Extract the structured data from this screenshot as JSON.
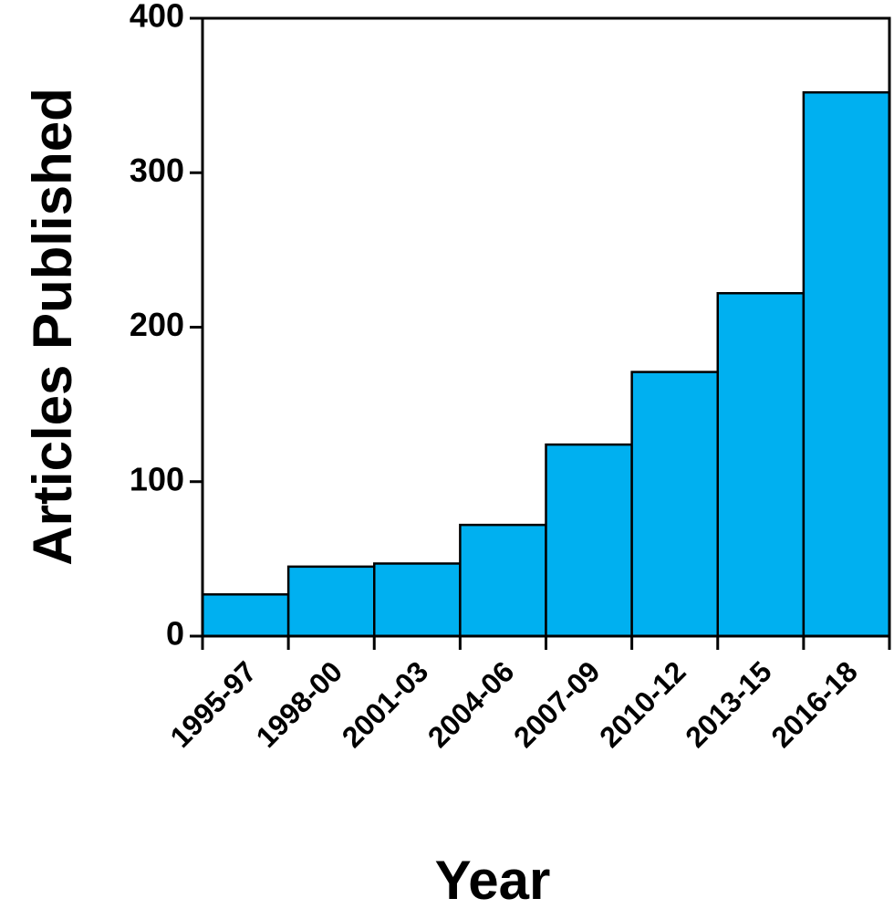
{
  "chart_data": {
    "type": "bar",
    "x_label": "Year",
    "y_label": "Articles Published",
    "categories": [
      "1995-97",
      "1998-00",
      "2001-03",
      "2004-06",
      "2007-09",
      "2010-12",
      "2013-15",
      "2016-18"
    ],
    "values": [
      27,
      45,
      47,
      72,
      124,
      171,
      222,
      352
    ],
    "color": "#00b0f0",
    "ylim": [
      0,
      400
    ],
    "yticks": [
      0,
      100,
      200,
      300,
      400
    ],
    "grid": false
  }
}
